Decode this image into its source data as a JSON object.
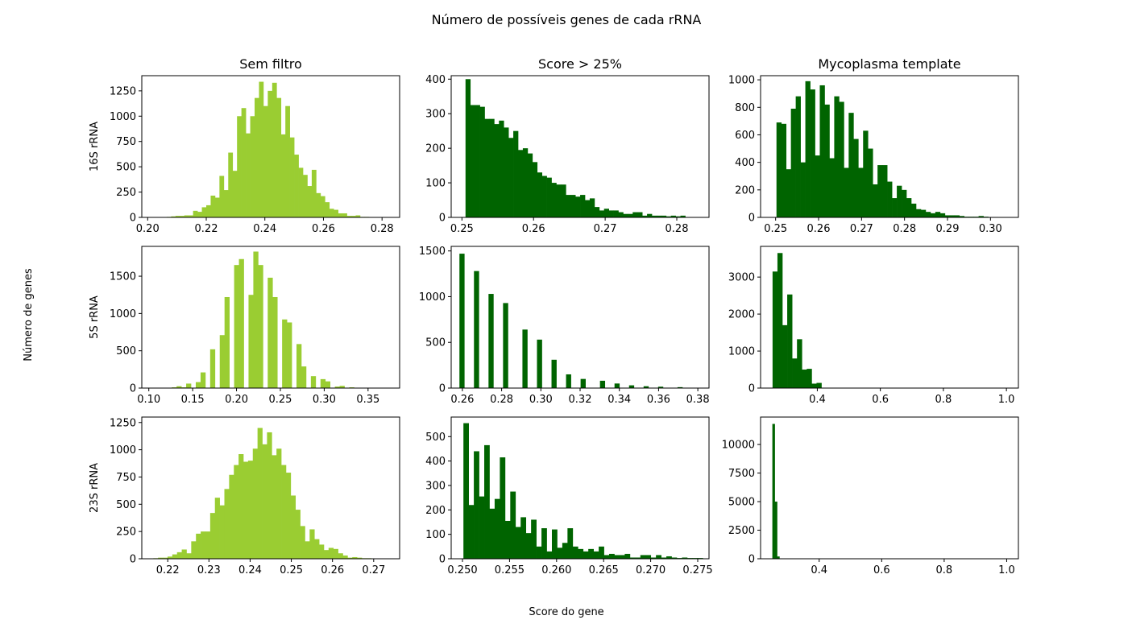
{
  "title": "Número de possíveis genes de cada rRNA",
  "ylabel_global": "Número de genes",
  "xlabel_global": "Score do gene",
  "column_titles": [
    "Sem filtro",
    "Score > 25%",
    "Mycoplasma template"
  ],
  "row_labels": [
    "16S rRNA",
    "5S rRNA",
    "23S rRNA"
  ],
  "colors": {
    "light": "#9acd32",
    "dark": "#006400"
  },
  "chart_data": [
    {
      "type": "bar",
      "row": 0,
      "col": 0,
      "color": "light",
      "xlim": [
        0.198,
        0.286
      ],
      "ylim": [
        0,
        1400
      ],
      "xticks": [
        0.2,
        0.22,
        0.24,
        0.26,
        0.28
      ],
      "xtick_labels": [
        "0.20",
        "0.22",
        "0.24",
        "0.26",
        "0.28"
      ],
      "yticks": [
        0,
        250,
        500,
        750,
        1000,
        1250
      ],
      "ytick_labels": [
        "0",
        "250",
        "500",
        "750",
        "1000",
        "1250"
      ],
      "bin_start": 0.205,
      "bin_width": 0.0015,
      "values": [
        3,
        5,
        10,
        15,
        15,
        20,
        20,
        65,
        55,
        100,
        120,
        215,
        195,
        410,
        270,
        640,
        460,
        1000,
        1080,
        830,
        1000,
        1180,
        1340,
        1100,
        1250,
        1330,
        1180,
        820,
        1100,
        790,
        620,
        490,
        420,
        310,
        470,
        240,
        210,
        150,
        85,
        75,
        40,
        40,
        15,
        15,
        20,
        5,
        5,
        3
      ]
    },
    {
      "type": "bar",
      "row": 0,
      "col": 1,
      "color": "dark",
      "xlim": [
        0.2485,
        0.2845
      ],
      "ylim": [
        0,
        410
      ],
      "xticks": [
        0.25,
        0.26,
        0.27,
        0.28
      ],
      "xtick_labels": [
        "0.25",
        "0.26",
        "0.27",
        "0.28"
      ],
      "yticks": [
        0,
        100,
        200,
        300,
        400
      ],
      "ytick_labels": [
        "0",
        "100",
        "200",
        "300",
        "400"
      ],
      "bin_start": 0.2505,
      "bin_width": 0.000667,
      "values": [
        400,
        325,
        325,
        320,
        285,
        285,
        270,
        280,
        260,
        230,
        250,
        195,
        200,
        185,
        160,
        130,
        120,
        115,
        100,
        95,
        95,
        65,
        65,
        60,
        65,
        50,
        55,
        30,
        20,
        25,
        20,
        20,
        15,
        10,
        10,
        15,
        15,
        5,
        10,
        5,
        5,
        5,
        3,
        5,
        3,
        5
      ]
    },
    {
      "type": "bar",
      "row": 0,
      "col": 2,
      "color": "dark",
      "xlim": [
        0.2465,
        0.3065
      ],
      "ylim": [
        0,
        1030
      ],
      "xticks": [
        0.25,
        0.26,
        0.27,
        0.28,
        0.29,
        0.3
      ],
      "xtick_labels": [
        "0.25",
        "0.26",
        "0.27",
        "0.28",
        "0.29",
        "0.30"
      ],
      "bin_start": 0.2502,
      "bin_width": 0.00112,
      "yticks": [
        0,
        200,
        400,
        600,
        800,
        1000
      ],
      "ytick_labels": [
        "0",
        "200",
        "400",
        "600",
        "800",
        "1000"
      ],
      "values": [
        690,
        680,
        350,
        790,
        880,
        400,
        990,
        930,
        450,
        960,
        820,
        430,
        880,
        840,
        360,
        760,
        570,
        360,
        630,
        500,
        240,
        380,
        380,
        260,
        140,
        230,
        200,
        140,
        100,
        60,
        55,
        40,
        30,
        40,
        30,
        15,
        15,
        15,
        10,
        5,
        5,
        5,
        10,
        5,
        3,
        3
      ]
    },
    {
      "type": "bar",
      "row": 1,
      "col": 0,
      "color": "light",
      "xlim": [
        0.092,
        0.386
      ],
      "ylim": [
        0,
        1900
      ],
      "xticks": [
        0.1,
        0.15,
        0.2,
        0.25,
        0.3,
        0.35
      ],
      "xtick_labels": [
        "0.10",
        "0.15",
        "0.20",
        "0.25",
        "0.30",
        "0.35"
      ],
      "yticks": [
        0,
        500,
        1000,
        1500
      ],
      "ytick_labels": [
        "0",
        "500",
        "1000",
        "1500"
      ],
      "bin_start": 0.1043,
      "bin_width": 0.00547,
      "values": [
        5,
        0,
        5,
        0,
        10,
        25,
        10,
        60,
        0,
        80,
        210,
        0,
        520,
        0,
        710,
        1220,
        0,
        1650,
        1730,
        0,
        1250,
        1830,
        1650,
        0,
        1480,
        1220,
        0,
        920,
        880,
        0,
        590,
        290,
        0,
        160,
        0,
        120,
        90,
        0,
        20,
        30,
        0,
        10,
        0,
        5,
        3
      ]
    },
    {
      "type": "bar",
      "row": 1,
      "col": 1,
      "color": "dark",
      "xlim": [
        0.2543,
        0.3857
      ],
      "ylim": [
        0,
        1550
      ],
      "xticks": [
        0.26,
        0.28,
        0.3,
        0.32,
        0.34,
        0.36,
        0.38
      ],
      "xtick_labels": [
        "0.26",
        "0.28",
        "0.30",
        "0.32",
        "0.34",
        "0.36",
        "0.38"
      ],
      "yticks": [
        0,
        500,
        1000,
        1500
      ],
      "ytick_labels": [
        "0",
        "500",
        "1000",
        "1500"
      ],
      "bin_start": 0.2585,
      "bin_width": 0.00247,
      "values": [
        1470,
        0,
        0,
        1280,
        0,
        0,
        1030,
        0,
        0,
        930,
        0,
        0,
        0,
        640,
        0,
        0,
        530,
        0,
        0,
        310,
        0,
        0,
        150,
        0,
        0,
        100,
        0,
        0,
        0,
        80,
        0,
        0,
        50,
        0,
        0,
        30,
        0,
        0,
        20,
        0,
        0,
        15,
        0,
        0,
        0,
        10
      ]
    },
    {
      "type": "bar",
      "row": 1,
      "col": 2,
      "color": "dark",
      "xlim": [
        0.22,
        1.038
      ],
      "ylim": [
        0,
        3830
      ],
      "xticks": [
        0.4,
        0.6,
        0.8,
        1.0
      ],
      "xtick_labels": [
        "0.4",
        "0.6",
        "0.8",
        "1.0"
      ],
      "yticks": [
        0,
        1000,
        2000,
        3000
      ],
      "ytick_labels": [
        "0",
        "1000",
        "2000",
        "3000"
      ],
      "bin_start": 0.258,
      "bin_width": 0.0155,
      "values": [
        3150,
        3650,
        1700,
        2530,
        800,
        1320,
        500,
        520,
        120,
        140,
        10
      ]
    },
    {
      "type": "bar",
      "row": 2,
      "col": 0,
      "color": "light",
      "xlim": [
        0.2137,
        0.2763
      ],
      "ylim": [
        0,
        1300
      ],
      "xticks": [
        0.22,
        0.23,
        0.24,
        0.25,
        0.26,
        0.27
      ],
      "xtick_labels": [
        "0.22",
        "0.23",
        "0.24",
        "0.25",
        "0.26",
        "0.27"
      ],
      "yticks": [
        0,
        250,
        500,
        750,
        1000,
        1250
      ],
      "ytick_labels": [
        "0",
        "250",
        "500",
        "750",
        "1000",
        "1250"
      ],
      "bin_start": 0.2165,
      "bin_width": 0.00115,
      "values": [
        5,
        10,
        10,
        20,
        40,
        60,
        85,
        50,
        160,
        230,
        250,
        250,
        420,
        560,
        490,
        640,
        770,
        860,
        960,
        890,
        900,
        1010,
        1200,
        1050,
        1160,
        950,
        1010,
        860,
        790,
        580,
        450,
        300,
        160,
        270,
        180,
        130,
        80,
        100,
        90,
        50,
        30,
        10,
        15,
        10,
        5,
        5
      ]
    },
    {
      "type": "bar",
      "row": 2,
      "col": 1,
      "color": "dark",
      "xlim": [
        0.2488,
        0.2762
      ],
      "ylim": [
        0,
        580
      ],
      "xticks": [
        0.25,
        0.255,
        0.26,
        0.265,
        0.27,
        0.275
      ],
      "xtick_labels": [
        "0.250",
        "0.255",
        "0.260",
        "0.265",
        "0.270",
        "0.275"
      ],
      "yticks": [
        0,
        100,
        200,
        300,
        400,
        500
      ],
      "ytick_labels": [
        "0",
        "100",
        "200",
        "300",
        "400",
        "500"
      ],
      "bin_start": 0.2501,
      "bin_width": 0.000553,
      "values": [
        555,
        220,
        440,
        255,
        465,
        205,
        245,
        415,
        155,
        275,
        130,
        170,
        105,
        160,
        50,
        125,
        30,
        120,
        45,
        65,
        125,
        50,
        40,
        30,
        40,
        30,
        50,
        15,
        20,
        15,
        15,
        20,
        5,
        5,
        15,
        15,
        5,
        15,
        5,
        10,
        5,
        3,
        5,
        3,
        3,
        3
      ]
    },
    {
      "type": "bar",
      "row": 2,
      "col": 2,
      "color": "dark",
      "xlim": [
        0.2125,
        1.0375
      ],
      "ylim": [
        0,
        12400
      ],
      "xticks": [
        0.4,
        0.6,
        0.8,
        1.0
      ],
      "xtick_labels": [
        "0.4",
        "0.6",
        "0.8",
        "1.0"
      ],
      "yticks": [
        0,
        2500,
        5000,
        7500,
        10000
      ],
      "ytick_labels": [
        "0",
        "2500",
        "5000",
        "7500",
        "10000"
      ],
      "bin_start": 0.2502,
      "bin_width": 0.0075,
      "values": [
        11800,
        5000,
        200
      ]
    }
  ]
}
